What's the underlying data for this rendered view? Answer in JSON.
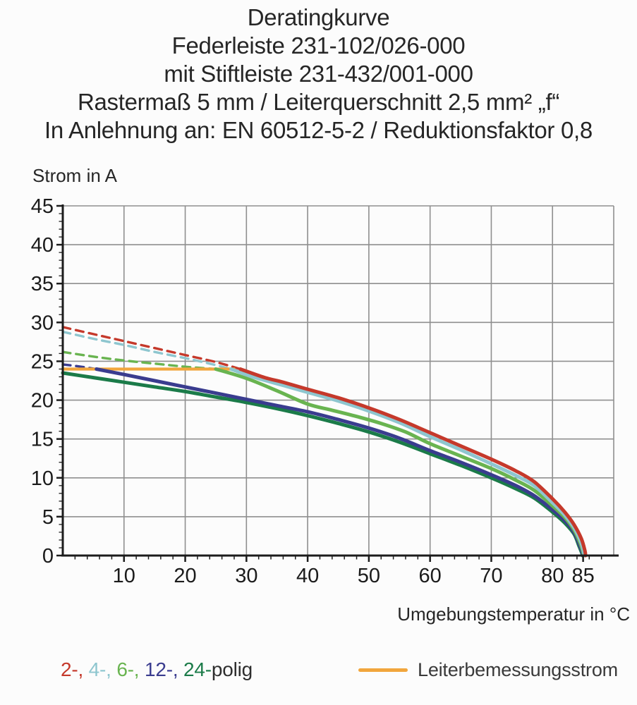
{
  "title_block": {
    "lines": [
      "Deratingkurve",
      "Federleiste 231-102/026-000",
      "mit Stiftleiste 231-432/001-000",
      "Rastermaß 5 mm / Leiterquerschnitt 2,5 mm² „f“",
      "In Anlehnung an: EN 60512-5-2 / Reduktionsfaktor 0,8"
    ]
  },
  "chart_data": {
    "type": "line",
    "title": "Deratingkurve",
    "xlabel": "Umgebungstemperatur in °C",
    "ylabel": "Strom in A",
    "xlim": [
      0,
      90
    ],
    "ylim": [
      0,
      45
    ],
    "grid": true,
    "grid_color": "#8f8f8f",
    "axis_color": "#1c1c1c",
    "x_major_ticks": [
      10,
      20,
      30,
      40,
      50,
      60,
      70,
      80,
      85
    ],
    "x_minor_step": 2,
    "y_major_step": 5,
    "y_minor_step": 1,
    "legend_position": "bottom",
    "series": [
      {
        "name": "2-polig",
        "color": "#c5392b",
        "dashed_points": [
          [
            0,
            29.4
          ],
          [
            5,
            28.5
          ],
          [
            10,
            27.6
          ],
          [
            15,
            26.7
          ],
          [
            20,
            25.8
          ],
          [
            25,
            24.9
          ],
          [
            29,
            24.0
          ]
        ],
        "solid_points": [
          [
            29,
            24.0
          ],
          [
            33,
            22.9
          ],
          [
            36,
            22.3
          ],
          [
            40,
            21.4
          ],
          [
            45,
            20.3
          ],
          [
            50,
            19.0
          ],
          [
            55,
            17.5
          ],
          [
            60,
            15.8
          ],
          [
            65,
            14.1
          ],
          [
            70,
            12.4
          ],
          [
            74,
            10.9
          ],
          [
            77,
            9.5
          ],
          [
            80,
            7.3
          ],
          [
            82,
            5.6
          ],
          [
            83.5,
            4.0
          ],
          [
            84.7,
            2.2
          ],
          [
            85.3,
            0.6
          ],
          [
            85.4,
            0
          ]
        ]
      },
      {
        "name": "4-polig",
        "color": "#8ec6cf",
        "dashed_points": [
          [
            0,
            28.8
          ],
          [
            5,
            27.9
          ],
          [
            10,
            27.1
          ],
          [
            15,
            26.2
          ],
          [
            20,
            25.4
          ],
          [
            24,
            24.7
          ],
          [
            27.5,
            24.0
          ]
        ],
        "solid_points": [
          [
            27.5,
            24.0
          ],
          [
            31,
            23.0
          ],
          [
            36,
            21.9
          ],
          [
            40,
            21.0
          ],
          [
            45,
            19.9
          ],
          [
            50,
            18.6
          ],
          [
            55,
            17.1
          ],
          [
            60,
            15.3
          ],
          [
            65,
            13.6
          ],
          [
            70,
            11.8
          ],
          [
            74,
            10.3
          ],
          [
            77,
            9.0
          ],
          [
            80,
            6.8
          ],
          [
            82,
            5.2
          ],
          [
            83.5,
            3.6
          ],
          [
            84.6,
            1.8
          ],
          [
            85.1,
            0.4
          ],
          [
            85.2,
            0
          ]
        ]
      },
      {
        "name": "6-polig",
        "color": "#69b450",
        "dashed_points": [
          [
            0,
            26.2
          ],
          [
            5,
            25.6
          ],
          [
            10,
            25.1
          ],
          [
            15,
            24.7
          ],
          [
            20,
            24.3
          ],
          [
            25,
            24.0
          ]
        ],
        "solid_points": [
          [
            25,
            24.0
          ],
          [
            30,
            22.8
          ],
          [
            35,
            21.2
          ],
          [
            40,
            19.5
          ],
          [
            44,
            18.7
          ],
          [
            48,
            17.9
          ],
          [
            52,
            17.0
          ],
          [
            56,
            15.9
          ],
          [
            60,
            14.4
          ],
          [
            65,
            12.8
          ],
          [
            70,
            11.2
          ],
          [
            74,
            9.7
          ],
          [
            77,
            8.4
          ],
          [
            80,
            6.4
          ],
          [
            82,
            4.9
          ],
          [
            83.5,
            3.3
          ],
          [
            84.5,
            1.6
          ],
          [
            85.0,
            0.4
          ],
          [
            85.1,
            0
          ]
        ]
      },
      {
        "name": "12-polig",
        "color": "#3a3c8f",
        "dashed_points": [
          [
            0,
            24.6
          ],
          [
            3,
            24.3
          ],
          [
            5.5,
            24.0
          ]
        ],
        "solid_points": [
          [
            5.5,
            24.0
          ],
          [
            10,
            23.3
          ],
          [
            15,
            22.5
          ],
          [
            20,
            21.7
          ],
          [
            25,
            20.9
          ],
          [
            30,
            20.1
          ],
          [
            35,
            19.3
          ],
          [
            40,
            18.5
          ],
          [
            45,
            17.5
          ],
          [
            50,
            16.4
          ],
          [
            55,
            15.1
          ],
          [
            60,
            13.5
          ],
          [
            65,
            12.0
          ],
          [
            70,
            10.4
          ],
          [
            74,
            9.0
          ],
          [
            77,
            7.7
          ],
          [
            80,
            5.9
          ],
          [
            82,
            4.5
          ],
          [
            83.5,
            3.0
          ],
          [
            84.4,
            1.4
          ],
          [
            84.9,
            0.3
          ],
          [
            85.0,
            0
          ]
        ]
      },
      {
        "name": "24-polig",
        "color": "#1b7b49",
        "solid_points": [
          [
            0,
            23.5
          ],
          [
            5,
            22.9
          ],
          [
            10,
            22.3
          ],
          [
            15,
            21.7
          ],
          [
            20,
            21.1
          ],
          [
            25,
            20.4
          ],
          [
            30,
            19.7
          ],
          [
            35,
            18.9
          ],
          [
            40,
            18.0
          ],
          [
            45,
            17.0
          ],
          [
            50,
            15.9
          ],
          [
            55,
            14.6
          ],
          [
            60,
            13.1
          ],
          [
            65,
            11.6
          ],
          [
            70,
            10.0
          ],
          [
            74,
            8.6
          ],
          [
            77,
            7.4
          ],
          [
            80,
            5.6
          ],
          [
            82,
            4.2
          ],
          [
            83.5,
            2.8
          ],
          [
            84.3,
            1.3
          ],
          [
            84.8,
            0.3
          ],
          [
            84.9,
            0
          ]
        ]
      },
      {
        "name": "Leiterbemessungsstrom",
        "color": "#f1a63d",
        "is_limit": true,
        "solid_points": [
          [
            0,
            24
          ],
          [
            28,
            24
          ]
        ]
      }
    ]
  },
  "legend": {
    "poles": {
      "segments": [
        {
          "text": "2-, ",
          "color": "#c5392b"
        },
        {
          "text": "4-, ",
          "color": "#8ec6cf"
        },
        {
          "text": "6-, ",
          "color": "#69b450"
        },
        {
          "text": "12-, ",
          "color": "#3a3c8f"
        },
        {
          "text": "24-",
          "color": "#1b7b49"
        },
        {
          "text": "polig",
          "color": "#2e2e2e"
        }
      ]
    },
    "rated_current": {
      "label": "Leiterbemessungsstrom",
      "swatch_color": "#f1a63d"
    }
  }
}
